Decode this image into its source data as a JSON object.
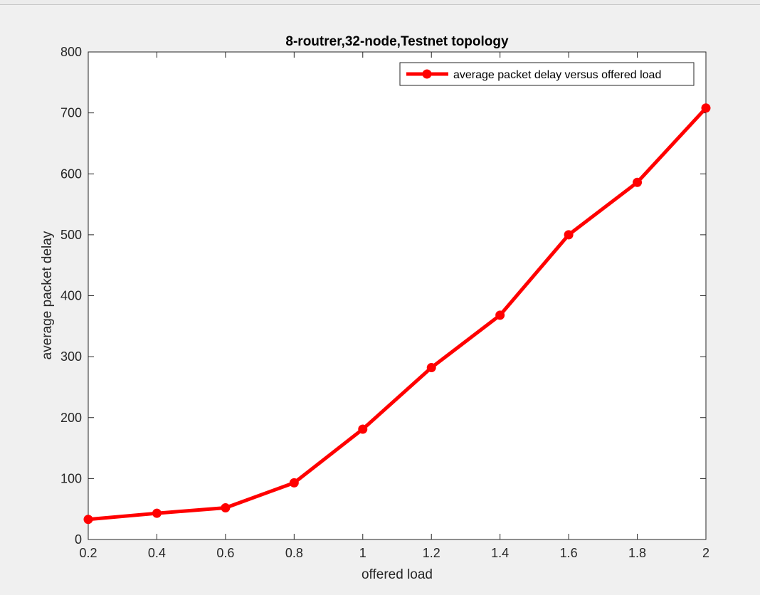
{
  "chart_data": {
    "type": "line",
    "title": "8-routrer,32-node,Testnet topology",
    "xlabel": "offered load",
    "ylabel": "average packet delay",
    "xlim": [
      0.2,
      2
    ],
    "ylim": [
      0,
      800
    ],
    "x_ticks": [
      "0.2",
      "0.4",
      "0.6",
      "0.8",
      "1",
      "1.2",
      "1.4",
      "1.6",
      "1.8",
      "2"
    ],
    "y_ticks": [
      "0",
      "100",
      "200",
      "300",
      "400",
      "500",
      "600",
      "700",
      "800"
    ],
    "x": [
      0.2,
      0.4,
      0.6,
      0.8,
      1.0,
      1.2,
      1.4,
      1.6,
      1.8,
      2.0
    ],
    "series": [
      {
        "name": "average packet delay versus offered load",
        "color": "#ff0000",
        "marker": "circle",
        "values": [
          33,
          43,
          52,
          93,
          181,
          282,
          368,
          500,
          586,
          708
        ]
      }
    ],
    "legend_position": "top-right",
    "grid": false
  }
}
